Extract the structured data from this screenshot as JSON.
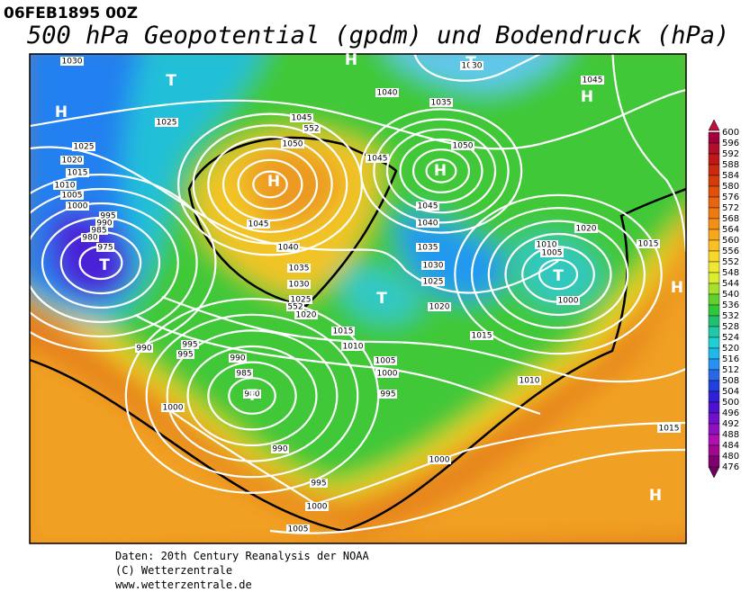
{
  "header": {
    "date": "06FEB1895 00Z",
    "title": "500 hPa Geopotential (gpdm) und Bodendruck (hPa)"
  },
  "colorbar": {
    "levels": [
      600,
      596,
      592,
      588,
      584,
      580,
      576,
      572,
      568,
      564,
      560,
      556,
      552,
      548,
      544,
      540,
      536,
      532,
      528,
      524,
      520,
      516,
      512,
      508,
      504,
      500,
      496,
      492,
      488,
      484,
      480,
      476
    ]
  },
  "isobar_labels": [
    1030,
    1030,
    1025,
    1025,
    1020,
    1015,
    1010,
    1005,
    1000,
    995,
    990,
    985,
    980,
    975,
    1040,
    1035,
    1045,
    1045,
    1050,
    1045,
    1050,
    1045,
    1040,
    1035,
    1030,
    1025,
    1020,
    1045,
    1040,
    1035,
    1030,
    1025,
    1020,
    1010,
    1005,
    1020,
    1015,
    1000,
    1015,
    1010,
    1015,
    1005,
    1000,
    1010,
    995,
    990,
    995,
    995,
    990,
    985,
    980,
    1000,
    990,
    995,
    1000,
    1005,
    1000,
    1015,
    552,
    552
  ],
  "pressure_centers": [
    "H",
    "T",
    "H",
    "T",
    "H",
    "H",
    "H",
    "T",
    "T",
    "T",
    "H",
    "T",
    "H"
  ],
  "footer": [
    "Daten: 20th Century Reanalysis der NOAA",
    "(C) Wetterzentrale",
    "www.wetterzentrale.de"
  ]
}
